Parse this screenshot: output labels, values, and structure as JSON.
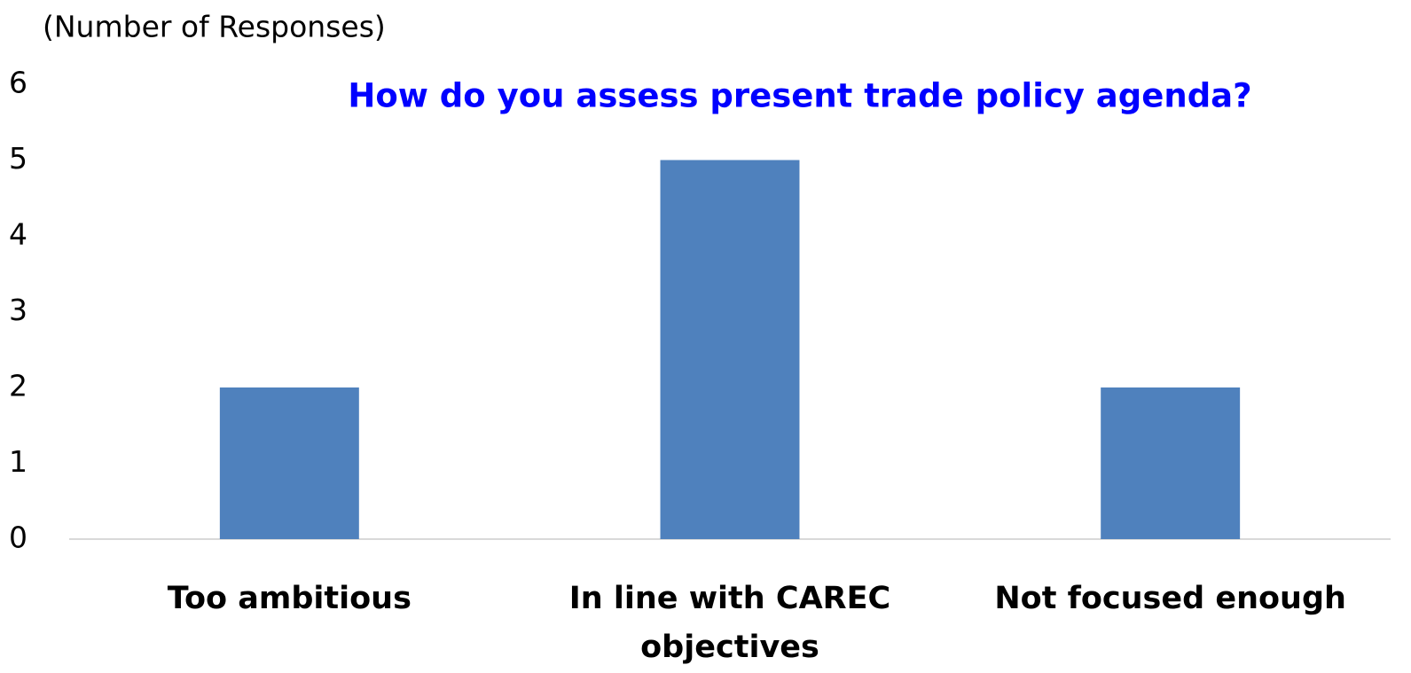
{
  "chart_data": {
    "type": "bar",
    "title": "How do you assess present trade policy agenda?",
    "y_label": "(Number of Responses)",
    "categories": [
      "Too ambitious",
      "In line with CAREC objectives",
      "Not focused enough"
    ],
    "values": [
      2,
      5,
      2
    ],
    "color": "#4f81bd",
    "title_color": "#0000ff",
    "ylim": [
      0,
      6
    ],
    "yticks": [
      0,
      1,
      2,
      3,
      4,
      5,
      6
    ],
    "grid": false
  }
}
